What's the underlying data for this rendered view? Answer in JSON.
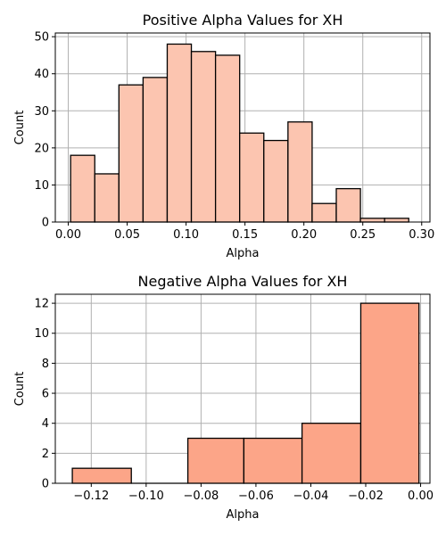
{
  "chart_data": [
    {
      "type": "bar",
      "title": "Positive Alpha Values for XH",
      "xlabel": "Alpha",
      "ylabel": "Count",
      "color": "#fcc5b0",
      "grid": true,
      "xlim": [
        -0.011,
        0.307
      ],
      "ylim": [
        0,
        51
      ],
      "xticks": [
        0.0,
        0.05,
        0.1,
        0.15,
        0.2,
        0.25,
        0.3
      ],
      "xtick_labels": [
        "0.00",
        "0.05",
        "0.10",
        "0.15",
        "0.20",
        "0.25",
        "0.30"
      ],
      "yticks": [
        0,
        10,
        20,
        30,
        40,
        50
      ],
      "ytick_labels": [
        "0",
        "10",
        "20",
        "30",
        "40",
        "50"
      ],
      "bins": [
        {
          "x0": 0.002,
          "x1": 0.0225,
          "value": 18
        },
        {
          "x0": 0.0225,
          "x1": 0.043,
          "value": 13
        },
        {
          "x0": 0.043,
          "x1": 0.0635,
          "value": 37
        },
        {
          "x0": 0.0635,
          "x1": 0.084,
          "value": 39
        },
        {
          "x0": 0.084,
          "x1": 0.1045,
          "value": 48
        },
        {
          "x0": 0.1045,
          "x1": 0.125,
          "value": 46
        },
        {
          "x0": 0.125,
          "x1": 0.1455,
          "value": 45
        },
        {
          "x0": 0.1455,
          "x1": 0.166,
          "value": 24
        },
        {
          "x0": 0.166,
          "x1": 0.1865,
          "value": 22
        },
        {
          "x0": 0.1865,
          "x1": 0.207,
          "value": 27
        },
        {
          "x0": 0.207,
          "x1": 0.2275,
          "value": 5
        },
        {
          "x0": 0.2275,
          "x1": 0.248,
          "value": 9
        },
        {
          "x0": 0.248,
          "x1": 0.2685,
          "value": 1
        },
        {
          "x0": 0.2685,
          "x1": 0.289,
          "value": 1
        }
      ]
    },
    {
      "type": "bar",
      "title": "Negative Alpha Values for XH",
      "xlabel": "Alpha",
      "ylabel": "Count",
      "color": "#fca588",
      "grid": true,
      "xlim": [
        -0.1331,
        0.0034
      ],
      "ylim": [
        0,
        12.6
      ],
      "xticks": [
        -0.12,
        -0.1,
        -0.08,
        -0.06,
        -0.04,
        -0.02,
        0.0
      ],
      "xtick_labels": [
        "−0.12",
        "−0.10",
        "−0.08",
        "−0.06",
        "−0.04",
        "−0.02",
        "0.00"
      ],
      "yticks": [
        0,
        2,
        4,
        6,
        8,
        10,
        12
      ],
      "ytick_labels": [
        "0",
        "2",
        "4",
        "6",
        "8",
        "10",
        "12"
      ],
      "bins": [
        {
          "x0": -0.1269,
          "x1": -0.1054,
          "value": 1
        },
        {
          "x0": -0.1054,
          "x1": -0.0848,
          "value": 0
        },
        {
          "x0": -0.0848,
          "x1": -0.0644,
          "value": 3
        },
        {
          "x0": -0.0644,
          "x1": -0.0432,
          "value": 3
        },
        {
          "x0": -0.0432,
          "x1": -0.0218,
          "value": 4
        },
        {
          "x0": -0.0218,
          "x1": -0.0006,
          "value": 12
        }
      ]
    }
  ]
}
